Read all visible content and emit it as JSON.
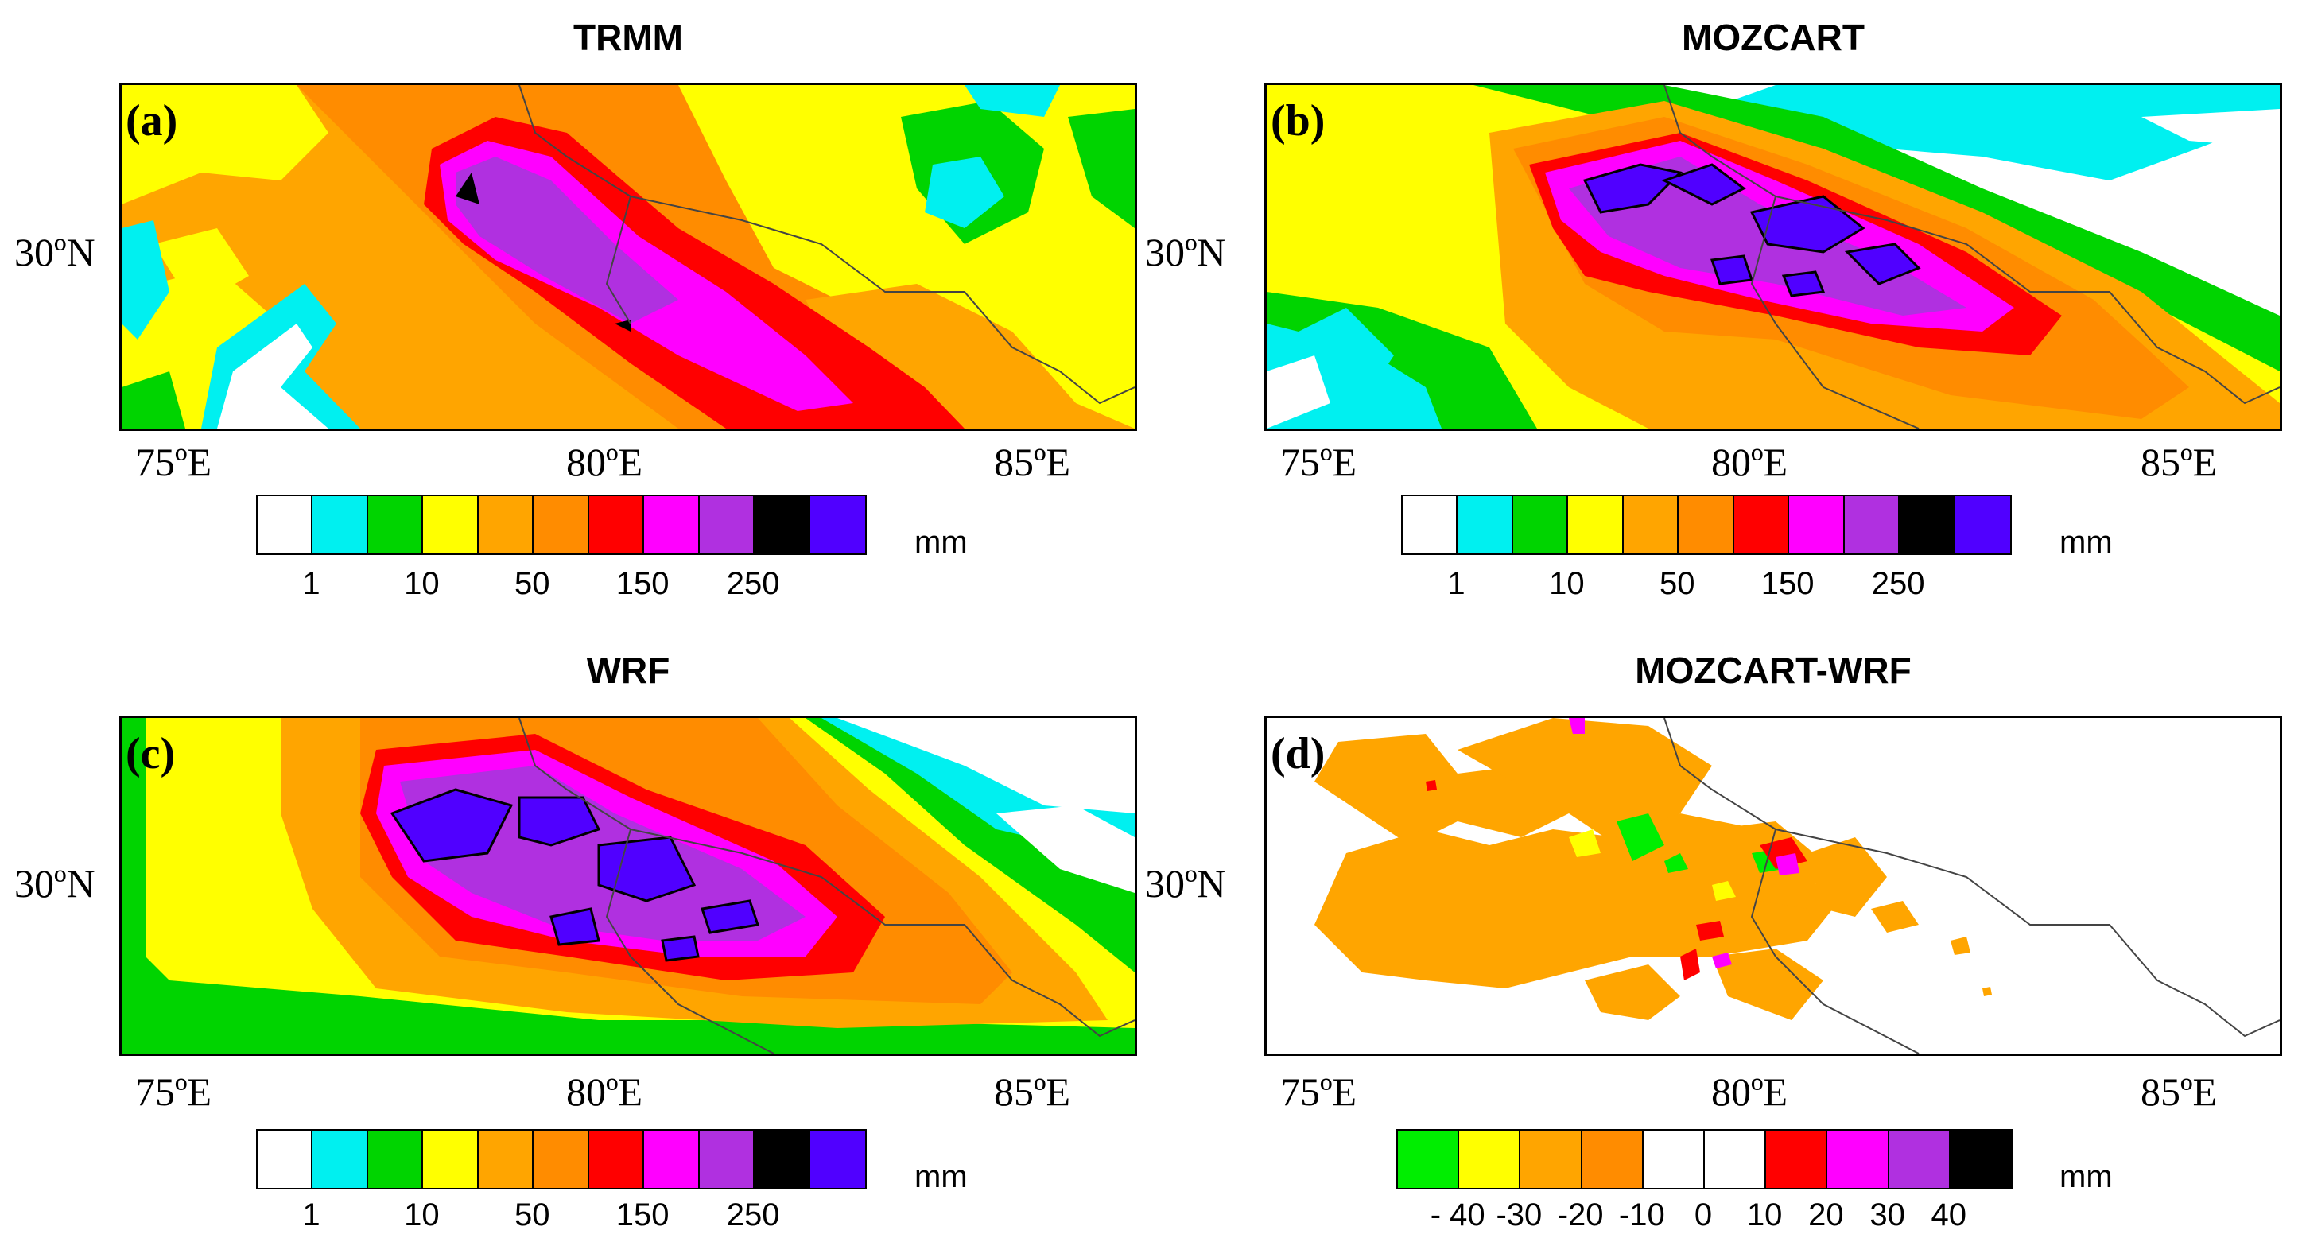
{
  "panels": [
    {
      "title": "TRMM",
      "label": "(a)",
      "lat_label": "30ºN",
      "lon_labels": [
        "75ºE",
        "80ºE",
        "85ºE"
      ]
    },
    {
      "title": "MOZCART",
      "label": "(b)",
      "lat_label": "30ºN",
      "lon_labels": [
        "75ºE",
        "80ºE",
        "85ºE"
      ]
    },
    {
      "title": "WRF",
      "label": "(c)",
      "lat_label": "30ºN",
      "lon_labels": [
        "75ºE",
        "80ºE",
        "85ºE"
      ]
    },
    {
      "title": "MOZCART-WRF",
      "label": "(d)",
      "lat_label": "30ºN",
      "lon_labels": [
        "75ºE",
        "80ºE",
        "85ºE"
      ]
    }
  ],
  "precip_colorbar": {
    "unit": "mm",
    "colors": [
      "#ffffff",
      "#00f0f0",
      "#00d400",
      "#ffff00",
      "#ffa500",
      "#ff8c00",
      "#ff0000",
      "#ff00ff",
      "#b030e0",
      "#000000",
      "#5000ff"
    ],
    "ticks": [
      "1",
      "10",
      "50",
      "150",
      "250"
    ]
  },
  "diff_colorbar": {
    "unit": "mm",
    "colors": [
      "#00ee00",
      "#ffff00",
      "#ffa500",
      "#ff8c00",
      "#ffffff",
      "#ffffff",
      "#ff0000",
      "#ff00ff",
      "#b030e0",
      "#000000"
    ],
    "ticks": [
      "- 40",
      "-30",
      "-20",
      "-10",
      "0",
      "10",
      "20",
      "30",
      "40"
    ]
  }
}
